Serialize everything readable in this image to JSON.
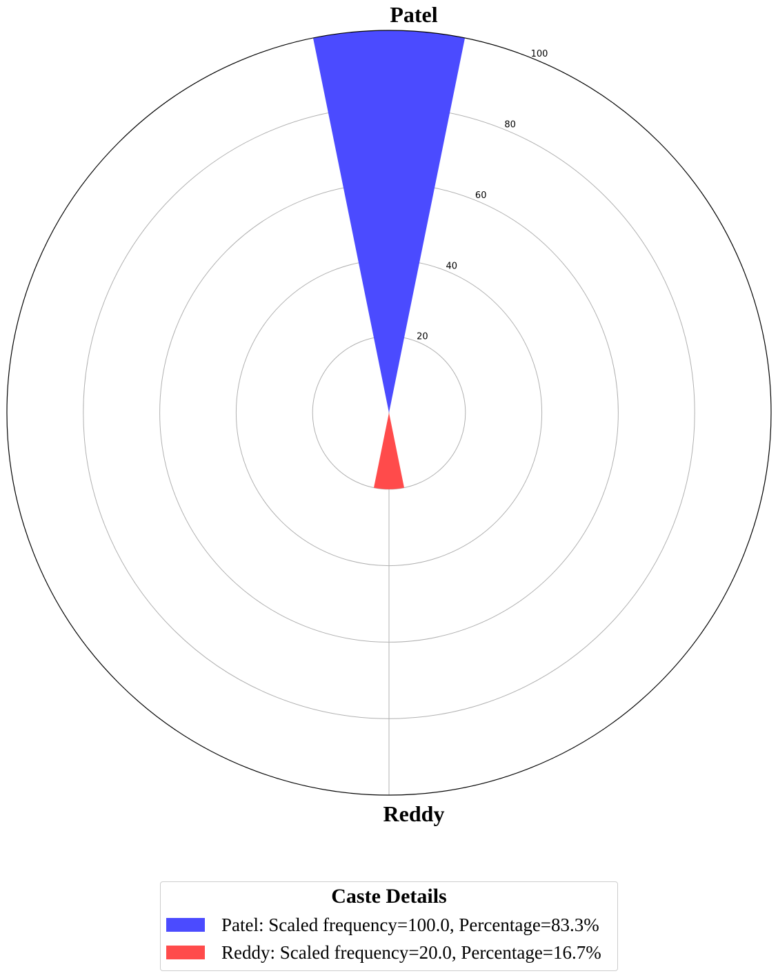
{
  "chart_data": {
    "type": "polar-bar",
    "categories": [
      "Patel",
      "Reddy"
    ],
    "values": [
      100.0,
      20.0
    ],
    "percentages": [
      "83.3%",
      "16.7%"
    ],
    "colors": [
      "#4b4bff",
      "#ff4b4b"
    ],
    "rlim": [
      0,
      100
    ],
    "rticks": [
      20,
      40,
      60,
      80,
      100
    ],
    "rtick_labels": [
      "20",
      "40",
      "60",
      "80",
      "100"
    ],
    "grid": true,
    "legend": {
      "title": "Caste Details",
      "placement": "bottom-center",
      "entries": [
        "Patel: Scaled frequency=100.0, Percentage=83.3%",
        "Reddy: Scaled frequency=20.0, Percentage=16.7%"
      ]
    }
  }
}
